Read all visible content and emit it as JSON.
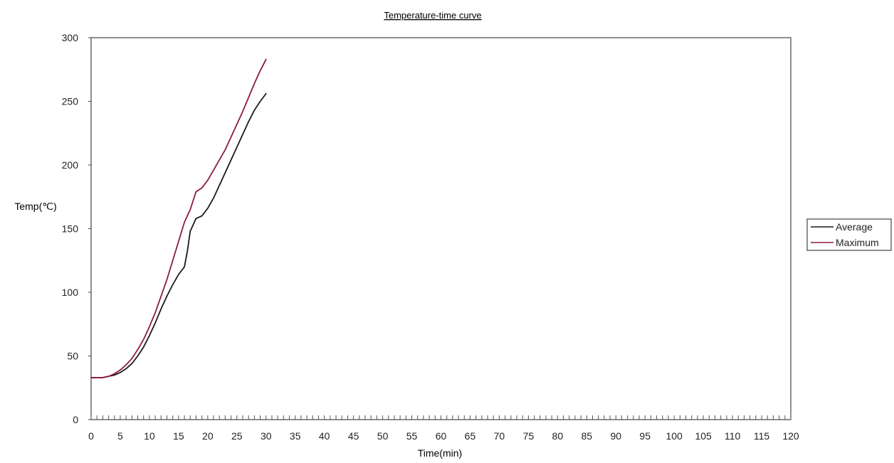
{
  "chart_data": {
    "type": "line",
    "title": "Temperature-time curve",
    "xlabel": "Time(min)",
    "ylabel": "Temp(℃)",
    "xlim": [
      0,
      120
    ],
    "ylim": [
      0,
      300
    ],
    "x_ticks": [
      0,
      5,
      10,
      15,
      20,
      25,
      30,
      35,
      40,
      45,
      50,
      55,
      60,
      65,
      70,
      75,
      80,
      85,
      90,
      95,
      100,
      105,
      110,
      115,
      120
    ],
    "y_ticks": [
      0,
      50,
      100,
      150,
      200,
      250,
      300
    ],
    "grid": false,
    "legend_position": "right",
    "series": [
      {
        "name": "Average",
        "color": "#1a1a1a",
        "points": [
          [
            0,
            33
          ],
          [
            1,
            33
          ],
          [
            2,
            33
          ],
          [
            3,
            34
          ],
          [
            4,
            35
          ],
          [
            5,
            37
          ],
          [
            6,
            40
          ],
          [
            7,
            44
          ],
          [
            8,
            50
          ],
          [
            9,
            57
          ],
          [
            10,
            66
          ],
          [
            11,
            76
          ],
          [
            12,
            87
          ],
          [
            13,
            97
          ],
          [
            14,
            106
          ],
          [
            15,
            114
          ],
          [
            16,
            120
          ],
          [
            16.5,
            132
          ],
          [
            17,
            148
          ],
          [
            18,
            158
          ],
          [
            19,
            160
          ],
          [
            20,
            166
          ],
          [
            21,
            174
          ],
          [
            22,
            184
          ],
          [
            23,
            194
          ],
          [
            24,
            204
          ],
          [
            25,
            214
          ],
          [
            26,
            224
          ],
          [
            27,
            234
          ],
          [
            28,
            243
          ],
          [
            29,
            250
          ],
          [
            30,
            256
          ]
        ]
      },
      {
        "name": "Maximum",
        "color": "#8b1d3b",
        "points": [
          [
            0,
            33
          ],
          [
            1,
            33
          ],
          [
            2,
            33
          ],
          [
            3,
            34
          ],
          [
            4,
            36
          ],
          [
            5,
            39
          ],
          [
            6,
            43
          ],
          [
            7,
            48
          ],
          [
            8,
            55
          ],
          [
            9,
            63
          ],
          [
            10,
            73
          ],
          [
            11,
            84
          ],
          [
            12,
            97
          ],
          [
            13,
            110
          ],
          [
            14,
            125
          ],
          [
            15,
            140
          ],
          [
            16,
            155
          ],
          [
            17,
            165
          ],
          [
            18,
            179
          ],
          [
            19,
            182
          ],
          [
            20,
            188
          ],
          [
            21,
            196
          ],
          [
            22,
            204
          ],
          [
            23,
            212
          ],
          [
            24,
            222
          ],
          [
            25,
            232
          ],
          [
            26,
            242
          ],
          [
            27,
            253
          ],
          [
            28,
            264
          ],
          [
            29,
            274
          ],
          [
            30,
            283
          ]
        ]
      }
    ]
  }
}
